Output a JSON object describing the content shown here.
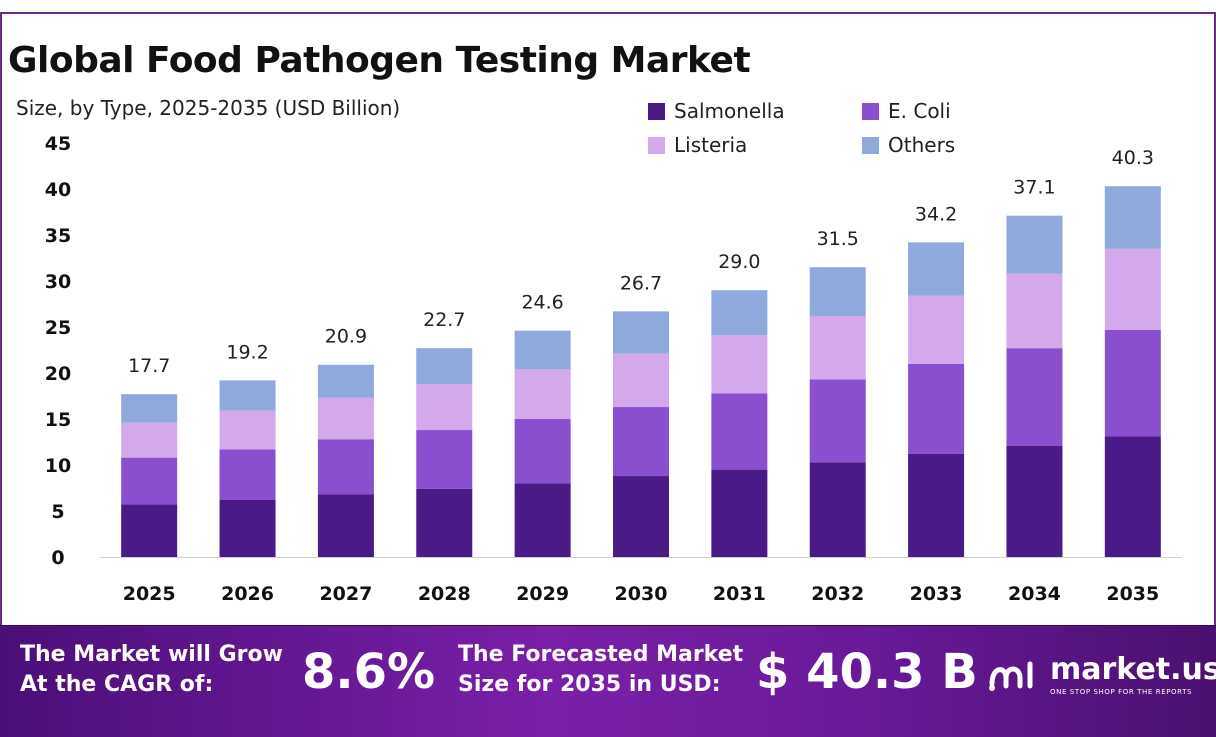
{
  "header": {
    "title": "Global Food Pathogen Testing Market",
    "subtitle": "Size, by Type, 2025-2035 (USD Billion)"
  },
  "chart_data": {
    "type": "bar",
    "stacked": true,
    "categories": [
      "2025",
      "2026",
      "2027",
      "2028",
      "2029",
      "2030",
      "2031",
      "2032",
      "2033",
      "2034",
      "2035"
    ],
    "series": [
      {
        "name": "Salmonella",
        "color": "#4a1a86",
        "values": [
          5.7,
          6.2,
          6.8,
          7.4,
          8.0,
          8.8,
          9.5,
          10.3,
          11.2,
          12.1,
          13.1
        ]
      },
      {
        "name": "E. Coli",
        "color": "#8a4fcf",
        "values": [
          5.1,
          5.5,
          6.0,
          6.4,
          7.0,
          7.5,
          8.3,
          9.0,
          9.8,
          10.6,
          11.6
        ]
      },
      {
        "name": "Listeria",
        "color": "#d3a9ec",
        "values": [
          3.8,
          4.2,
          4.5,
          5.0,
          5.4,
          5.8,
          6.3,
          6.9,
          7.4,
          8.1,
          8.8
        ]
      },
      {
        "name": "Others",
        "color": "#8fa9dc",
        "values": [
          3.1,
          3.3,
          3.6,
          3.9,
          4.2,
          4.6,
          4.9,
          5.3,
          5.8,
          6.3,
          6.8
        ]
      }
    ],
    "totals": [
      "17.7",
      "19.2",
      "20.9",
      "22.7",
      "24.6",
      "26.7",
      "29.0",
      "31.5",
      "34.2",
      "37.1",
      "40.3"
    ],
    "yticks": [
      "0",
      "5",
      "10",
      "15",
      "20",
      "25",
      "30",
      "35",
      "40",
      "45"
    ],
    "ylim": [
      0,
      45
    ],
    "grid": false,
    "legend_position": "top-right"
  },
  "footer": {
    "cagr_label_line1": "The Market will Grow",
    "cagr_label_line2": "At the CAGR of:",
    "cagr_value": "8.6%",
    "forecast_label_line1": "The Forecasted Market",
    "forecast_label_line2": "Size for 2035 in USD:",
    "forecast_value": "$ 40.3 B",
    "brand_name": "market.us",
    "brand_tagline": "ONE STOP SHOP FOR THE REPORTS",
    "brand_icon": "market-us-logo-icon"
  }
}
